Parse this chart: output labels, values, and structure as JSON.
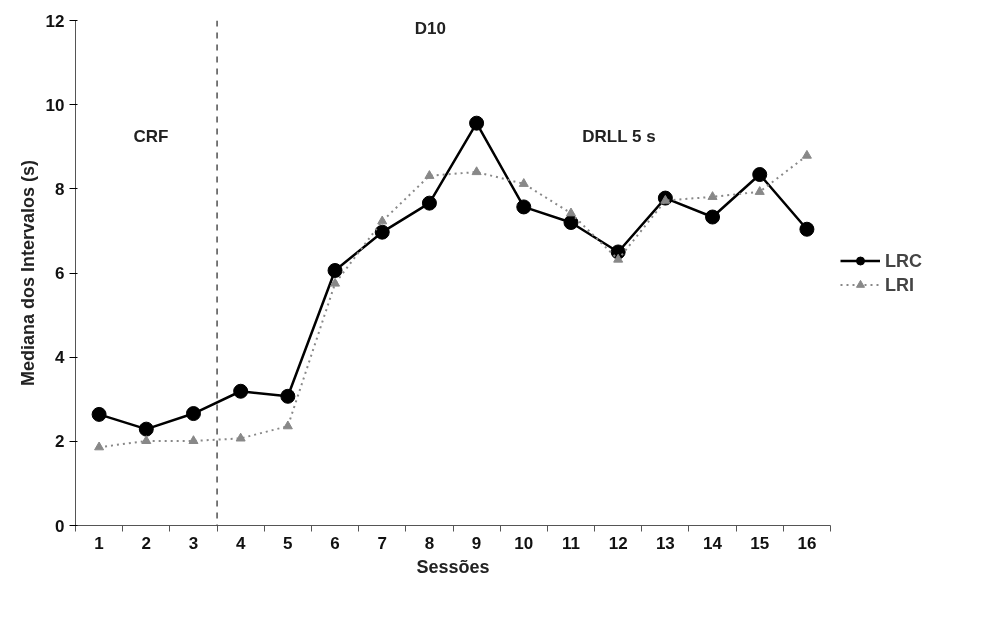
{
  "chart_data": {
    "type": "line",
    "xlabel": "Sessões",
    "ylabel": "Mediana dos Intervalos (s)",
    "x": [
      1,
      2,
      3,
      4,
      5,
      6,
      7,
      8,
      9,
      10,
      11,
      12,
      13,
      14,
      15,
      16
    ],
    "xlim": [
      0.5,
      16.5
    ],
    "xticks": [
      1,
      2,
      3,
      4,
      5,
      6,
      7,
      8,
      9,
      10,
      11,
      12,
      13,
      14,
      15,
      16
    ],
    "ylim": [
      0,
      12
    ],
    "yticks": [
      0,
      2,
      4,
      6,
      8,
      10,
      12
    ],
    "series": [
      {
        "name": "LRC",
        "color": "#000000",
        "marker": "circle",
        "line_style": "solid",
        "values": [
          2.64,
          2.29,
          2.66,
          3.19,
          3.07,
          6.06,
          6.97,
          7.66,
          9.56,
          7.57,
          7.2,
          6.5,
          7.78,
          7.33,
          8.34,
          7.04
        ]
      },
      {
        "name": "LRI",
        "color": "#888888",
        "marker": "triangle",
        "line_style": "dotted",
        "values": [
          1.86,
          2.01,
          2.01,
          2.07,
          2.36,
          5.75,
          7.23,
          8.31,
          8.4,
          8.12,
          7.42,
          6.32,
          7.72,
          7.81,
          7.93,
          8.79
        ]
      }
    ],
    "ref_lines": [
      {
        "axis": "x",
        "value": 3.5,
        "color": "#333333",
        "line_style": "dashed"
      }
    ],
    "annotations": [
      "D10",
      "CRF",
      "DRLL 5 s"
    ],
    "grid": false,
    "legend": "right"
  }
}
